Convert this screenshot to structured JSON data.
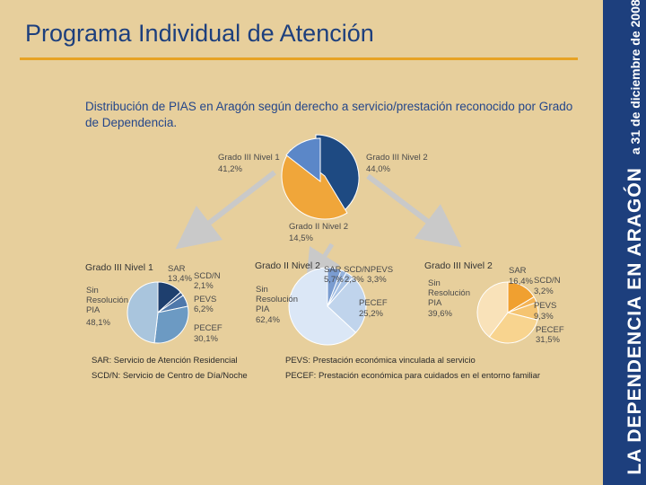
{
  "slide": {
    "title": "Programa Individual de Atención",
    "side_band": {
      "main": "LA DEPENDENCIA EN ARAGÓN",
      "date": "a 31 de diciembre de 2008"
    }
  },
  "colors": {
    "background": "#e7cf9c",
    "title_rule": "#e7a324",
    "band": "#1d3f7d",
    "main_n1": "#1e4a82",
    "main_n2": "#f0a63a",
    "main_g2": "#5b87c8",
    "arrow": "#c9c9c9"
  },
  "chart_data": [
    {
      "type": "pie",
      "name": "main",
      "title": "Distribución de PIAS en Aragón según derecho a servicio/prestación reconocido por Grado de Dependencia.",
      "categories": [
        "Grado III Nivel 1",
        "Grado III Nivel 2",
        "Grado II Nivel 2"
      ],
      "values": [
        41.2,
        44.0,
        14.5
      ],
      "labels": [
        "41,2%",
        "44,0%",
        "14,5%"
      ],
      "colors": [
        "#1e4a82",
        "#f0a63a",
        "#5b87c8"
      ]
    },
    {
      "type": "pie",
      "name": "g3n1",
      "title": "Grado III Nivel 1",
      "categories": [
        "SAR",
        "SCD/N",
        "PEVS",
        "PECEF",
        "Sin Resolución PIA"
      ],
      "values": [
        13.4,
        2.1,
        6.2,
        30.1,
        48.1
      ],
      "labels": [
        "13,4%",
        "2,1%",
        "6,2%",
        "30,1%",
        "48,1%"
      ],
      "colors": [
        "#1e3f6e",
        "#38588a",
        "#4f78ab",
        "#6c9ac3",
        "#a9c5dd"
      ]
    },
    {
      "type": "pie",
      "name": "g2n2",
      "title": "Grado II Nivel 2",
      "categories": [
        "SAR",
        "SCD/N",
        "PEVS",
        "PECEF",
        "Sin Resolución PIA"
      ],
      "values": [
        5.7,
        2.3,
        3.3,
        25.2,
        62.4
      ],
      "labels": [
        "5,7%",
        "2,3%",
        "3,3%",
        "25,2%",
        "62,4%"
      ],
      "colors": [
        "#7a9cd0",
        "#94b2dc",
        "#a9c3e5",
        "#c0d4ec",
        "#dbe7f6"
      ]
    },
    {
      "type": "pie",
      "name": "g3n2",
      "title": "Grado III Nivel 2",
      "categories": [
        "SAR",
        "SCD/N",
        "PEVS",
        "PECEF",
        "Sin Resolución PIA"
      ],
      "values": [
        16.4,
        3.2,
        9.3,
        31.5,
        39.6
      ],
      "labels": [
        "16,4%",
        "3,2%",
        "9,3%",
        "31,5%",
        "39,6%"
      ],
      "colors": [
        "#f0a030",
        "#f4b456",
        "#f5c471",
        "#f8d48f",
        "#f9e2b9"
      ]
    }
  ],
  "legend": {
    "sar": "SAR: Servicio de Atención Residencial",
    "scdn": "SCD/N: Servicio de Centro de Día/Noche",
    "pevs": "PEVS: Prestación económica vinculada al servicio",
    "pecef": "PECEF: Prestación económica para cuidados en el entorno familiar"
  }
}
